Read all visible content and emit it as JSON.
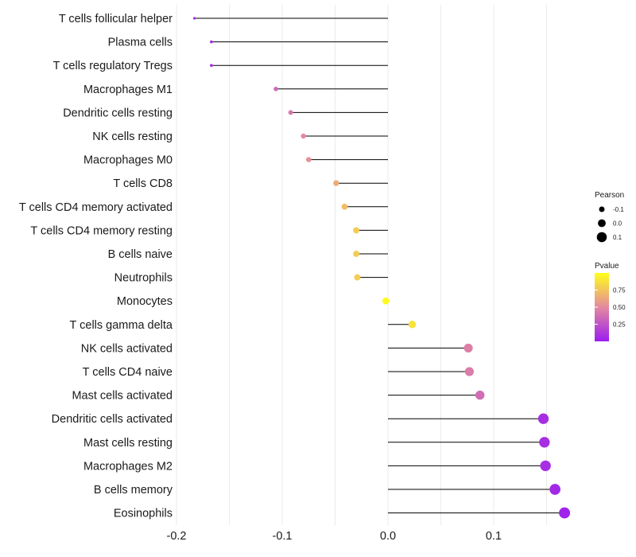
{
  "chart_data": {
    "type": "lollipop",
    "title": "",
    "xlabel": "",
    "ylabel": "",
    "xlim": [
      -0.2,
      0.2
    ],
    "x_ticks": [
      -0.2,
      -0.1,
      0.0,
      0.1
    ],
    "x_tick_labels": [
      "-0.2",
      "-0.1",
      "0.0",
      "0.1"
    ],
    "grid": true,
    "categories": [
      "T cells follicular helper",
      "Plasma cells",
      "T cells regulatory  Tregs",
      "Macrophages M1",
      "Dendritic cells resting",
      "NK cells resting",
      "Macrophages M0",
      "T cells CD8",
      "T cells CD4 memory activated",
      "T cells CD4 memory resting",
      "B cells naive",
      "Neutrophils",
      "Monocytes",
      "T cells gamma delta",
      "NK cells activated",
      "T cells CD4 naive",
      "Mast cells activated",
      "Dendritic cells activated",
      "Mast cells resting",
      "Macrophages M2",
      "B cells memory",
      "Eosinophils"
    ],
    "pearson": [
      -0.183,
      -0.167,
      -0.167,
      -0.106,
      -0.092,
      -0.08,
      -0.075,
      -0.049,
      -0.041,
      -0.03,
      -0.03,
      -0.029,
      -0.002,
      0.023,
      0.076,
      0.077,
      0.087,
      0.147,
      0.148,
      0.149,
      0.158,
      0.167
    ],
    "pvalue": [
      0.05,
      0.08,
      0.08,
      0.35,
      0.42,
      0.5,
      0.53,
      0.65,
      0.72,
      0.78,
      0.78,
      0.79,
      0.98,
      0.88,
      0.45,
      0.44,
      0.37,
      0.08,
      0.08,
      0.08,
      0.05,
      0.03
    ],
    "legend_size": {
      "title": "Pearson",
      "labels": [
        "-0.1",
        "0.0",
        "0.1"
      ],
      "values": [
        -0.1,
        0.0,
        0.1
      ]
    },
    "legend_color": {
      "title": "Pvalue",
      "labels": [
        "0.75",
        "0.50",
        "0.25"
      ],
      "values": [
        0.75,
        0.5,
        0.25
      ],
      "range": [
        0.0,
        1.0
      ],
      "low_color": "#9b1df0",
      "mid_color": "#e4899f",
      "high_color": "#ffff1a"
    },
    "legend_position": "right"
  }
}
